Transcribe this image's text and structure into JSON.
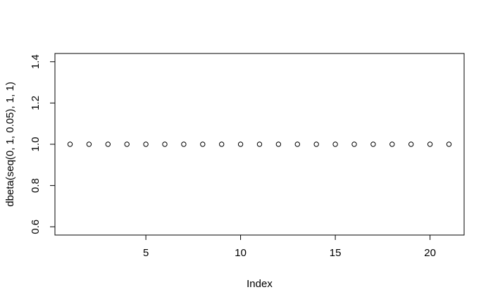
{
  "chart_data": {
    "type": "scatter",
    "title": "",
    "xlabel": "Index",
    "ylabel": "dbeta(seq(0, 1, 0.05), 1, 1)",
    "x": [
      1,
      2,
      3,
      4,
      5,
      6,
      7,
      8,
      9,
      10,
      11,
      12,
      13,
      14,
      15,
      16,
      17,
      18,
      19,
      20,
      21
    ],
    "y": [
      1,
      1,
      1,
      1,
      1,
      1,
      1,
      1,
      1,
      1,
      1,
      1,
      1,
      1,
      1,
      1,
      1,
      1,
      1,
      1,
      1
    ],
    "xlim": [
      0.2,
      21.8
    ],
    "ylim": [
      0.56,
      1.44
    ],
    "xticks": [
      5,
      10,
      15,
      20
    ],
    "xtick_labels": [
      "5",
      "10",
      "15",
      "20"
    ],
    "yticks": [
      0.6,
      0.8,
      1.0,
      1.2,
      1.4
    ],
    "ytick_labels": [
      "0.6",
      "0.8",
      "1.0",
      "1.2",
      "1.4"
    ],
    "grid": false,
    "marker": "open-circle",
    "marker_color": "#000000",
    "frame_color": "#000000"
  }
}
